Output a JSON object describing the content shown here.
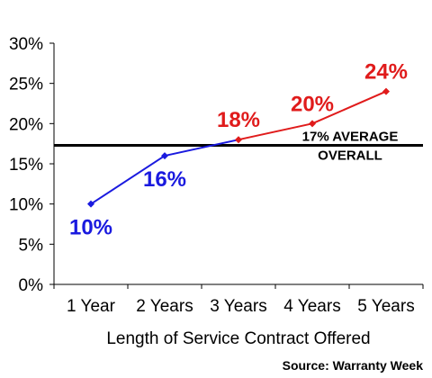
{
  "chart_data": {
    "type": "line",
    "categories": [
      "1 Year",
      "2 Years",
      "3 Years",
      "4 Years",
      "5 Years"
    ],
    "series": [
      {
        "values": [
          10,
          16,
          18,
          20,
          24
        ],
        "color": "#1a1adf",
        "label_color": "#1a1adf"
      }
    ],
    "segment_colors": [
      "#1a1adf",
      "#1a1adf",
      "#e01b1b",
      "#e01b1b"
    ],
    "label_colors": [
      "#1a1adf",
      "#1a1adf",
      "#e01b1b",
      "#e01b1b",
      "#e01b1b"
    ],
    "data_labels": [
      "10%",
      "16%",
      "18%",
      "20%",
      "24%"
    ],
    "y_ticks": [
      "0%",
      "5%",
      "10%",
      "15%",
      "20%",
      "25%",
      "30%"
    ],
    "ylim": [
      0,
      30
    ],
    "grid": false,
    "xlabel": "Length of Service Contract Offered",
    "ylabel": "",
    "reference_line": {
      "value": 17.3,
      "label_line1": "17% AVERAGE",
      "label_line2": "OVERALL",
      "color": "#000000"
    }
  },
  "source": "Source: Warranty Week"
}
